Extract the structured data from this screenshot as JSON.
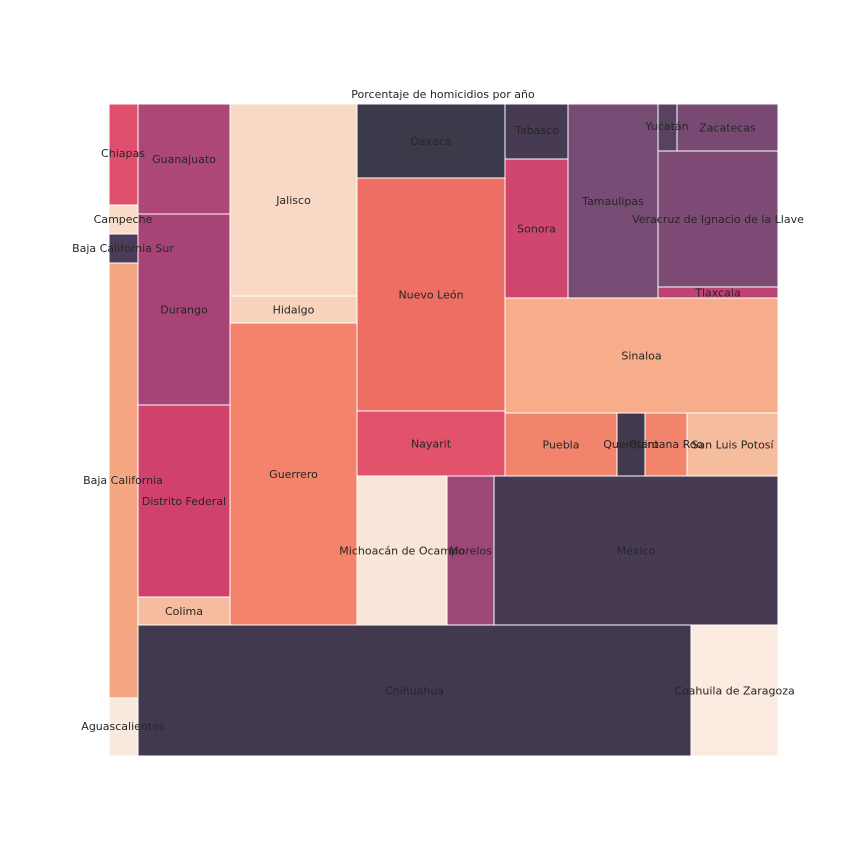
{
  "chart_data": {
    "type": "treemap",
    "title": "Porcentaje de homicidios por año",
    "tiles": [
      {
        "name": "Aguascalientes",
        "value": 0.55,
        "color": "#f9eae0"
      },
      {
        "name": "Baja California",
        "value": 3.82,
        "color": "#f5a683"
      },
      {
        "name": "Baja California Sur",
        "value": 0.26,
        "color": "#4b3d5a"
      },
      {
        "name": "Campeche",
        "value": 0.26,
        "color": "#f8dbc8"
      },
      {
        "name": "Chiapas",
        "value": 0.89,
        "color": "#e14f6e"
      },
      {
        "name": "Chihuahua",
        "value": 10.54,
        "color": "#43394f"
      },
      {
        "name": "Coahuila de Zaragoza",
        "value": 1.7,
        "color": "#faeadf"
      },
      {
        "name": "Colima",
        "value": 0.41,
        "color": "#f6bc9e"
      },
      {
        "name": "Distrito Federal",
        "value": 2.65,
        "color": "#d0426c"
      },
      {
        "name": "Durango",
        "value": 2.65,
        "color": "#a84377"
      },
      {
        "name": "Guanajuato",
        "value": 1.53,
        "color": "#ad4778"
      },
      {
        "name": "Guerrero",
        "value": 7.22,
        "color": "#f3836b"
      },
      {
        "name": "Hidalgo",
        "value": 0.48,
        "color": "#f8d4bd"
      },
      {
        "name": "Jalisco",
        "value": 3.44,
        "color": "#f8d9c5"
      },
      {
        "name": "Michoacán de Ocampo",
        "value": 3.46,
        "color": "#f9e6d8"
      },
      {
        "name": "Morelos",
        "value": 1.62,
        "color": "#9d4778"
      },
      {
        "name": "México",
        "value": 9.17,
        "color": "#463b53"
      },
      {
        "name": "Nayarit",
        "value": 2.1,
        "color": "#e2526b"
      },
      {
        "name": "Nuevo León",
        "value": 7.63,
        "color": "#ee6e64"
      },
      {
        "name": "Oaxaca",
        "value": 2.42,
        "color": "#3b3a4a"
      },
      {
        "name": "Puebla",
        "value": 1.65,
        "color": "#f2846c"
      },
      {
        "name": "Querétaro",
        "value": 0.42,
        "color": "#43394f"
      },
      {
        "name": "Quintana Roo",
        "value": 0.61,
        "color": "#f2846c"
      },
      {
        "name": "San Luis Potosí",
        "value": 1.34,
        "color": "#f6bc9e"
      },
      {
        "name": "Sinaloa",
        "value": 7.0,
        "color": "#f7ad89"
      },
      {
        "name": "Sonora",
        "value": 2.05,
        "color": "#d1466f"
      },
      {
        "name": "Tabasco",
        "value": 0.8,
        "color": "#463b53"
      },
      {
        "name": "Tamaulipas",
        "value": 3.92,
        "color": "#764b74"
      },
      {
        "name": "Tlaxcala",
        "value": 0.27,
        "color": "#bd4373"
      },
      {
        "name": "Veracruz de Ignacio de la Llave",
        "value": 3.31,
        "color": "#7e4b76"
      },
      {
        "name": "Yucatán",
        "value": 0.19,
        "color": "#584262"
      },
      {
        "name": "Zacatecas",
        "value": 1.02,
        "color": "#784a73"
      }
    ]
  }
}
